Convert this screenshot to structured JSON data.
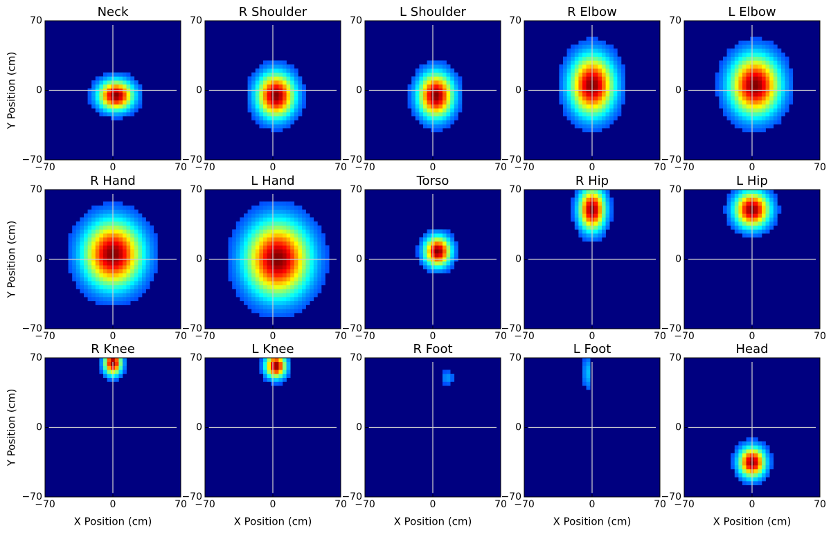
{
  "chart_data": [
    {
      "type": "hist2d",
      "title": "Neck",
      "center": [
        3,
        -5
      ],
      "spread": [
        12,
        10
      ],
      "peak": 1,
      "xlim": [
        -70,
        70
      ],
      "ylim": [
        -70,
        70
      ],
      "xticks": [
        {
          "value": -70,
          "label": "−70"
        },
        0,
        70
      ],
      "yticks": [
        {
          "value": -70,
          "label": "−70"
        },
        0,
        70
      ],
      "ylabel": "Y Position (cm)"
    },
    {
      "type": "hist2d",
      "title": "R Shoulder",
      "center": [
        3,
        -5
      ],
      "spread": [
        13,
        15
      ],
      "peak": 1,
      "xlim": [
        -70,
        70
      ],
      "ylim": [
        -70,
        70
      ],
      "xticks": [
        {
          "value": -70,
          "label": "−70"
        },
        0,
        70
      ],
      "yticks": [
        {
          "value": -70,
          "label": "−70"
        },
        0,
        70
      ]
    },
    {
      "type": "hist2d",
      "title": "L Shoulder",
      "center": [
        3,
        -5
      ],
      "spread": [
        12,
        15
      ],
      "peak": 1,
      "xlim": [
        -70,
        70
      ],
      "ylim": [
        -70,
        70
      ],
      "xticks": [
        {
          "value": -70,
          "label": "−70"
        },
        0,
        70
      ],
      "yticks": [
        {
          "value": -70,
          "label": "−70"
        },
        0,
        70
      ]
    },
    {
      "type": "hist2d",
      "title": "R Elbow",
      "center": [
        0,
        5
      ],
      "spread": [
        15,
        20
      ],
      "peak": 1,
      "xlim": [
        -70,
        70
      ],
      "ylim": [
        -70,
        70
      ],
      "xticks": [
        {
          "value": -70,
          "label": "−70"
        },
        0,
        70
      ],
      "yticks": [
        {
          "value": -70,
          "label": "−70"
        },
        0,
        70
      ]
    },
    {
      "type": "hist2d",
      "title": "L Elbow",
      "center": [
        3,
        5
      ],
      "spread": [
        17,
        20
      ],
      "peak": 1,
      "xlim": [
        -70,
        70
      ],
      "ylim": [
        -70,
        70
      ],
      "xticks": [
        {
          "value": -70,
          "label": "−70"
        },
        0,
        70
      ],
      "yticks": [
        {
          "value": -70,
          "label": "−70"
        },
        0,
        70
      ]
    },
    {
      "type": "hist2d",
      "title": "R Hand",
      "center": [
        0,
        5
      ],
      "spread": [
        20,
        22
      ],
      "peak": 1,
      "xlim": [
        -70,
        70
      ],
      "ylim": [
        -70,
        70
      ],
      "xticks": [
        {
          "value": -70,
          "label": "−70"
        },
        0,
        70
      ],
      "yticks": [
        {
          "value": -70,
          "label": "−70"
        },
        0,
        70
      ],
      "ylabel": "Y Position (cm)"
    },
    {
      "type": "hist2d",
      "title": "L Hand",
      "center": [
        5,
        0
      ],
      "spread": [
        22,
        25
      ],
      "peak": 1,
      "xlim": [
        -70,
        70
      ],
      "ylim": [
        -70,
        70
      ],
      "xticks": [
        {
          "value": -70,
          "label": "−70"
        },
        0,
        70
      ],
      "yticks": [
        {
          "value": -70,
          "label": "−70"
        },
        0,
        70
      ]
    },
    {
      "type": "hist2d",
      "title": "Torso",
      "center": [
        5,
        8
      ],
      "spread": [
        9,
        10
      ],
      "peak": 1,
      "xlim": [
        -70,
        70
      ],
      "ylim": [
        -70,
        70
      ],
      "xticks": [
        {
          "value": -70,
          "label": "−70"
        },
        0,
        70
      ],
      "yticks": [
        {
          "value": -70,
          "label": "−70"
        },
        0,
        70
      ]
    },
    {
      "type": "hist2d",
      "title": "R Hip",
      "center": [
        0,
        50
      ],
      "spread": [
        9,
        14
      ],
      "peak": 1,
      "xlim": [
        -70,
        70
      ],
      "ylim": [
        -70,
        70
      ],
      "xticks": [
        {
          "value": -70,
          "label": "−70"
        },
        0,
        70
      ],
      "yticks": [
        {
          "value": -70,
          "label": "−70"
        },
        0,
        70
      ]
    },
    {
      "type": "hist2d",
      "title": "L Hip",
      "center": [
        0,
        50
      ],
      "spread": [
        12,
        12
      ],
      "peak": 1,
      "xlim": [
        -70,
        70
      ],
      "ylim": [
        -70,
        70
      ],
      "xticks": [
        {
          "value": -70,
          "label": "−70"
        },
        0,
        70
      ],
      "yticks": [
        {
          "value": -70,
          "label": "−70"
        },
        0,
        70
      ]
    },
    {
      "type": "hist2d",
      "title": "R Knee",
      "center": [
        0,
        65
      ],
      "spread": [
        6,
        8
      ],
      "peak": 1,
      "xlim": [
        -70,
        70
      ],
      "ylim": [
        -70,
        70
      ],
      "xticks": [
        {
          "value": -70,
          "label": "−70"
        },
        0,
        70
      ],
      "yticks": [
        {
          "value": -70,
          "label": "−70"
        },
        0,
        70
      ],
      "xlabel": "X Position (cm)",
      "ylabel": "Y Position (cm)"
    },
    {
      "type": "hist2d",
      "title": "L Knee",
      "center": [
        3,
        62
      ],
      "spread": [
        7,
        8
      ],
      "peak": 1,
      "xlim": [
        -70,
        70
      ],
      "ylim": [
        -70,
        70
      ],
      "xticks": [
        {
          "value": -70,
          "label": "−70"
        },
        0,
        70
      ],
      "yticks": [
        {
          "value": -70,
          "label": "−70"
        },
        0,
        70
      ],
      "xlabel": "X Position (cm)"
    },
    {
      "type": "hist2d",
      "title": "R Foot",
      "center": [
        15,
        50
      ],
      "spread": [
        5,
        5
      ],
      "peak": 0.15,
      "xlim": [
        -70,
        70
      ],
      "ylim": [
        -70,
        70
      ],
      "xticks": [
        {
          "value": -70,
          "label": "−70"
        },
        0,
        70
      ],
      "yticks": [
        {
          "value": -70,
          "label": "−70"
        },
        0,
        70
      ],
      "xlabel": "X Position (cm)"
    },
    {
      "type": "hist2d",
      "title": "L Foot",
      "center": [
        -5,
        55
      ],
      "spread": [
        3,
        12
      ],
      "peak": 0.2,
      "xlim": [
        -70,
        70
      ],
      "ylim": [
        -70,
        70
      ],
      "xticks": [
        {
          "value": -70,
          "label": "−70"
        },
        0,
        70
      ],
      "yticks": [
        {
          "value": -70,
          "label": "−70"
        },
        0,
        70
      ],
      "xlabel": "X Position (cm)"
    },
    {
      "type": "hist2d",
      "title": "Head",
      "center": [
        0,
        -35
      ],
      "spread": [
        9,
        10
      ],
      "peak": 1,
      "xlim": [
        -70,
        70
      ],
      "ylim": [
        -70,
        70
      ],
      "xticks": [
        {
          "value": -70,
          "label": "−70"
        },
        0,
        70
      ],
      "yticks": [
        {
          "value": -70,
          "label": "−70"
        },
        0,
        70
      ],
      "xlabel": "X Position (cm)"
    }
  ]
}
